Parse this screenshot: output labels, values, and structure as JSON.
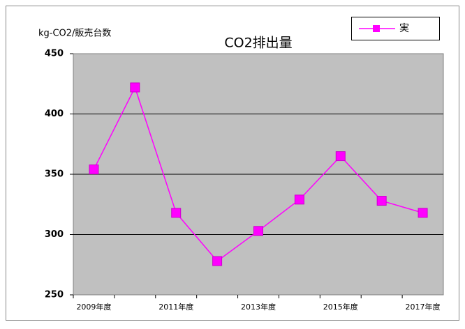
{
  "chart_data": {
    "type": "line",
    "title": "CO2排出量",
    "y_label": "kg-CO2/販売台数",
    "categories": [
      "2009年度",
      null,
      "2011年度",
      null,
      "2013年度",
      null,
      "2015年度",
      null,
      "2017年度"
    ],
    "series": [
      {
        "name": "実",
        "color": "#ff00ff",
        "values": [
          354,
          422,
          318,
          278,
          303,
          329,
          365,
          328,
          318
        ]
      }
    ],
    "ylim": [
      250,
      450
    ],
    "yticks": [
      250,
      300,
      350,
      400,
      450
    ],
    "grid": true,
    "legend": "top-right"
  }
}
